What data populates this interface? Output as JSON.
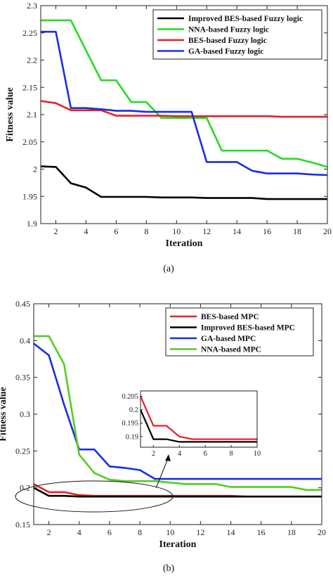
{
  "chart_data": [
    {
      "type": "line",
      "caption": "(a)",
      "xlabel": "Iteration",
      "ylabel": "Fitness value",
      "xlim": [
        1,
        20
      ],
      "ylim": [
        1.9,
        2.3
      ],
      "xticks": [
        2,
        4,
        6,
        8,
        10,
        12,
        14,
        16,
        18,
        20
      ],
      "yticks": [
        1.9,
        1.95,
        2.0,
        2.05,
        2.1,
        2.15,
        2.2,
        2.25,
        2.3
      ],
      "ytick_labels": [
        "1.9",
        "1.95",
        "2",
        "2.05",
        "2.1",
        "2.15",
        "2.2",
        "2.25",
        "2.3"
      ],
      "grid": false,
      "legend_position": "top-right",
      "x": [
        1,
        2,
        3,
        4,
        5,
        6,
        7,
        8,
        9,
        10,
        11,
        12,
        13,
        14,
        15,
        16,
        17,
        18,
        19,
        20
      ],
      "series": [
        {
          "name": "Improved BES-based Fuzzy logic",
          "color": "#000000",
          "values": [
            2.005,
            2.004,
            1.974,
            1.966,
            1.949,
            1.949,
            1.949,
            1.949,
            1.948,
            1.948,
            1.948,
            1.947,
            1.947,
            1.947,
            1.947,
            1.945,
            1.945,
            1.945,
            1.945,
            1.945
          ]
        },
        {
          "name": "NNA-based Fuzzy logic",
          "color": "#22dd22",
          "values": [
            2.273,
            2.273,
            2.273,
            2.218,
            2.163,
            2.163,
            2.123,
            2.123,
            2.094,
            2.094,
            2.094,
            2.094,
            2.034,
            2.034,
            2.034,
            2.034,
            2.019,
            2.019,
            2.012,
            2.004
          ]
        },
        {
          "name": "BES-based Fuzzy logic",
          "color": "#e8202a",
          "values": [
            2.125,
            2.121,
            2.108,
            2.108,
            2.108,
            2.098,
            2.098,
            2.098,
            2.098,
            2.097,
            2.097,
            2.097,
            2.097,
            2.097,
            2.097,
            2.097,
            2.096,
            2.096,
            2.096,
            2.096
          ]
        },
        {
          "name": "GA-based Fuzzy logic",
          "color": "#1a2ee0",
          "values": [
            2.252,
            2.252,
            2.112,
            2.112,
            2.11,
            2.107,
            2.107,
            2.105,
            2.105,
            2.105,
            2.105,
            2.013,
            2.013,
            2.013,
            1.997,
            1.992,
            1.992,
            1.992,
            1.99,
            1.989
          ]
        }
      ]
    },
    {
      "type": "line",
      "caption": "(b)",
      "xlabel": "Iteration",
      "ylabel": "Fitness value",
      "xlim": [
        1,
        20
      ],
      "ylim": [
        0.15,
        0.45
      ],
      "xticks": [
        2,
        4,
        6,
        8,
        10,
        12,
        14,
        16,
        18,
        20
      ],
      "yticks": [
        0.15,
        0.2,
        0.25,
        0.3,
        0.35,
        0.4,
        0.45
      ],
      "ytick_labels": [
        "0.15",
        "0.2",
        "0.25",
        "0.3",
        "0.35",
        "0.4",
        "0.45"
      ],
      "grid": false,
      "legend_position": "top-right",
      "x": [
        1,
        2,
        3,
        4,
        5,
        6,
        7,
        8,
        9,
        10,
        11,
        12,
        13,
        14,
        15,
        16,
        17,
        18,
        19,
        20
      ],
      "series": [
        {
          "name": "BES-based MPC",
          "color": "#e8202a",
          "values": [
            0.205,
            0.194,
            0.194,
            0.19,
            0.189,
            0.189,
            0.189,
            0.189,
            0.189,
            0.189,
            0.189,
            0.189,
            0.189,
            0.189,
            0.188,
            0.188,
            0.188,
            0.188,
            0.188,
            0.188
          ]
        },
        {
          "name": "Improved BES-based MPC",
          "color": "#000000",
          "values": [
            0.2,
            0.189,
            0.189,
            0.188,
            0.188,
            0.188,
            0.188,
            0.188,
            0.188,
            0.188,
            0.188,
            0.188,
            0.188,
            0.188,
            0.188,
            0.188,
            0.188,
            0.188,
            0.188,
            0.188
          ]
        },
        {
          "name": "GA-based MPC",
          "color": "#1a2ee0",
          "values": [
            0.396,
            0.38,
            0.313,
            0.252,
            0.252,
            0.229,
            0.227,
            0.224,
            0.212,
            0.212,
            0.212,
            0.212,
            0.212,
            0.212,
            0.212,
            0.212,
            0.212,
            0.212,
            0.212,
            0.212
          ]
        },
        {
          "name": "NNA-based MPC",
          "color": "#55cc22",
          "values": [
            0.406,
            0.406,
            0.368,
            0.245,
            0.22,
            0.211,
            0.209,
            0.209,
            0.209,
            0.207,
            0.205,
            0.205,
            0.205,
            0.201,
            0.201,
            0.201,
            0.201,
            0.201,
            0.197,
            0.197
          ]
        }
      ],
      "inset": {
        "xlim": [
          1,
          10
        ],
        "ylim": [
          0.186,
          0.207
        ],
        "xticks": [
          2,
          4,
          6,
          8,
          10
        ],
        "yticks": [
          0.19,
          0.195,
          0.2,
          0.205
        ],
        "ytick_labels": [
          "0.19",
          "0.195",
          "0.2",
          "0.205"
        ],
        "x": [
          1,
          2,
          3,
          4,
          5,
          6,
          7,
          8,
          9,
          10
        ],
        "series": [
          {
            "name": "BES-based MPC",
            "color": "#e8202a",
            "values": [
              0.205,
              0.194,
              0.194,
              0.19,
              0.189,
              0.189,
              0.189,
              0.189,
              0.189,
              0.189
            ]
          },
          {
            "name": "Improved BES-based MPC",
            "color": "#000000",
            "values": [
              0.2,
              0.189,
              0.189,
              0.188,
              0.188,
              0.188,
              0.188,
              0.188,
              0.188,
              0.188
            ]
          }
        ]
      }
    }
  ]
}
